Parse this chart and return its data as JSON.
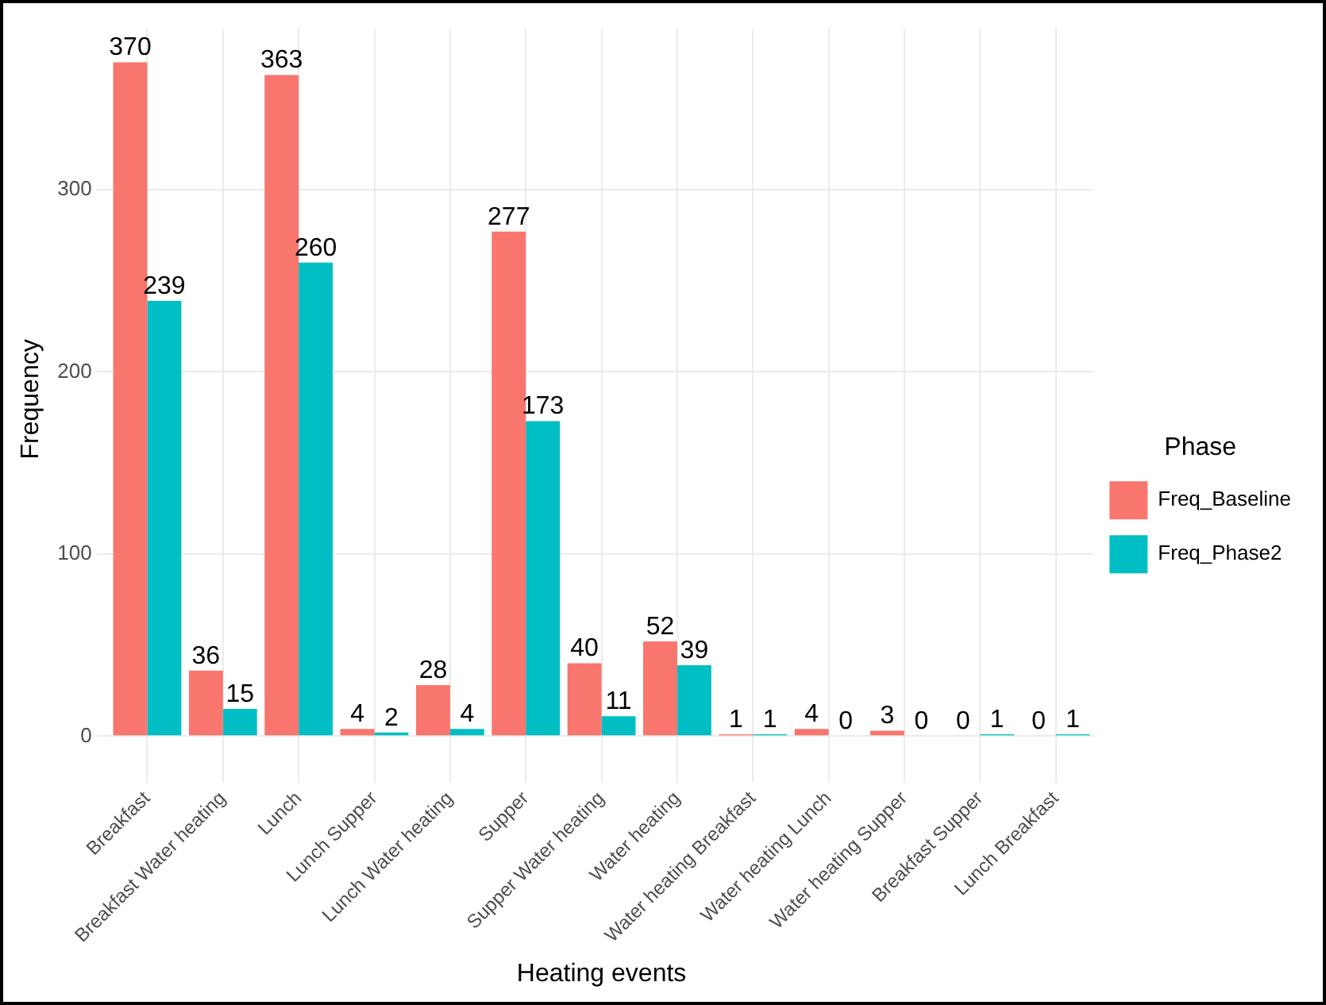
{
  "chart_data": {
    "type": "bar",
    "xlabel": "Heating events",
    "ylabel": "Frequency",
    "legend_title": "Phase",
    "categories": [
      "Breakfast",
      "Breakfast Water heating",
      "Lunch",
      "Lunch Supper",
      "Lunch Water heating",
      "Supper",
      "Supper Water heating",
      "Water heating",
      "Water heating Breakfast",
      "Water heating Lunch",
      "Water heating Supper",
      "Breakfast Supper",
      "Lunch Breakfast"
    ],
    "series": [
      {
        "name": "Freq_Baseline",
        "color": "#f8766d",
        "values": [
          370,
          36,
          363,
          4,
          28,
          277,
          40,
          52,
          1,
          4,
          3,
          0,
          0
        ]
      },
      {
        "name": "Freq_Phase2",
        "color": "#00bfc4",
        "values": [
          239,
          15,
          260,
          2,
          4,
          173,
          11,
          39,
          1,
          0,
          0,
          1,
          1
        ]
      }
    ],
    "ylim": [
      -18.5,
      388.5
    ],
    "yticks": [
      0,
      100,
      200,
      300
    ],
    "grid": true,
    "legend": "right",
    "data_labels": true
  }
}
